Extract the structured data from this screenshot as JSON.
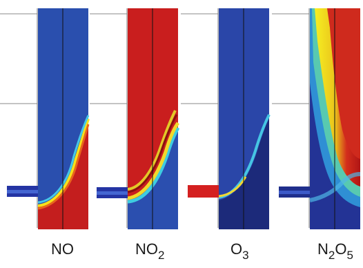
{
  "figure": {
    "panels": [
      {
        "id": "no",
        "label_main": "NO",
        "label_sub": "",
        "label_tail": "",
        "colormap": "jet"
      },
      {
        "id": "no2",
        "label_main": "NO",
        "label_sub": "2",
        "label_tail": "",
        "colormap": "jet"
      },
      {
        "id": "o3",
        "label_main": "O",
        "label_sub": "3",
        "label_tail": "",
        "colormap": "jet"
      },
      {
        "id": "n2o5",
        "label_main": "N",
        "label_sub": "2",
        "label_tail": "O",
        "label_sub2": "5",
        "colormap": "jet"
      }
    ]
  }
}
